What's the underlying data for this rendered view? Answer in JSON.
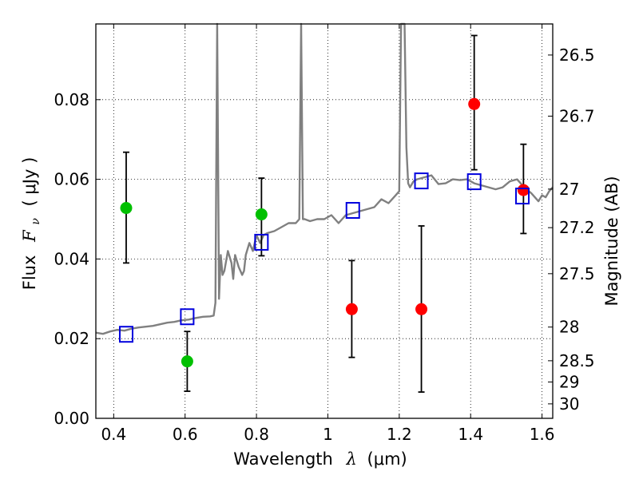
{
  "chart_data": {
    "type": "scatter",
    "xlabel_text": "Wavelength",
    "xlabel_symbol": "λ",
    "xlabel_unit": "(μm)",
    "ylabel_text": "Flux",
    "ylabel_symbol": "F",
    "ylabel_sub": "ν",
    "ylabel_unit": "( μJy )",
    "y2label": "Magnitude (AB)",
    "xlim": [
      0.35,
      1.63
    ],
    "ylim": [
      0.0,
      0.099
    ],
    "grid": true,
    "x_ticks": [
      0.4,
      0.6,
      0.8,
      1.0,
      1.2,
      1.4,
      1.6
    ],
    "x_tick_labels": [
      "0.4",
      "0.6",
      "0.8",
      "1",
      "1.2",
      "1.4",
      "1.6"
    ],
    "y_ticks": [
      0.0,
      0.02,
      0.04,
      0.06,
      0.08
    ],
    "y_tick_labels": [
      "0.00",
      "0.02",
      "0.04",
      "0.06",
      "0.08"
    ],
    "y2_ticks": [
      {
        "mag": 26.5,
        "label": "26.5"
      },
      {
        "mag": 26.7,
        "label": "26.7"
      },
      {
        "mag": 27.0,
        "label": "27"
      },
      {
        "mag": 27.2,
        "label": "27.2"
      },
      {
        "mag": 27.5,
        "label": "27.5"
      },
      {
        "mag": 28.0,
        "label": "28"
      },
      {
        "mag": 28.5,
        "label": "28.5"
      },
      {
        "mag": 29.0,
        "label": "29"
      },
      {
        "mag": 30.0,
        "label": "30"
      }
    ],
    "series": [
      {
        "name": "green points",
        "color": "#00c000",
        "marker": "circle",
        "points": [
          {
            "x": 0.435,
            "y": 0.0528,
            "ylo": 0.039,
            "yhi": 0.0668
          },
          {
            "x": 0.606,
            "y": 0.0143,
            "ylo": 0.0068,
            "yhi": 0.0218
          },
          {
            "x": 0.814,
            "y": 0.0512,
            "ylo": 0.0408,
            "yhi": 0.0603
          }
        ]
      },
      {
        "name": "red points",
        "color": "#ff0000",
        "marker": "circle",
        "points": [
          {
            "x": 1.067,
            "y": 0.0274,
            "ylo": 0.0153,
            "yhi": 0.0396
          },
          {
            "x": 1.262,
            "y": 0.0274,
            "ylo": 0.0066,
            "yhi": 0.0483
          },
          {
            "x": 1.41,
            "y": 0.0789,
            "ylo": 0.0624,
            "yhi": 0.0961
          },
          {
            "x": 1.548,
            "y": 0.0573,
            "ylo": 0.0464,
            "yhi": 0.0688
          }
        ]
      },
      {
        "name": "model photometry",
        "color": "#0000dd",
        "marker": "open-square",
        "points": [
          {
            "x": 0.435,
            "y": 0.0211
          },
          {
            "x": 0.606,
            "y": 0.0255
          },
          {
            "x": 0.814,
            "y": 0.0442
          },
          {
            "x": 1.07,
            "y": 0.0522
          },
          {
            "x": 1.262,
            "y": 0.0596
          },
          {
            "x": 1.41,
            "y": 0.0594
          },
          {
            "x": 1.545,
            "y": 0.0558
          }
        ]
      },
      {
        "name": "model spectrum",
        "color": "#808080",
        "marker": "line",
        "x": [
          0.35,
          0.37,
          0.39,
          0.41,
          0.43,
          0.45,
          0.47,
          0.49,
          0.51,
          0.53,
          0.55,
          0.57,
          0.59,
          0.61,
          0.63,
          0.65,
          0.67,
          0.68,
          0.685,
          0.69,
          0.695,
          0.7,
          0.705,
          0.71,
          0.72,
          0.73,
          0.735,
          0.74,
          0.75,
          0.76,
          0.765,
          0.77,
          0.78,
          0.79,
          0.8,
          0.81,
          0.82,
          0.83,
          0.85,
          0.87,
          0.89,
          0.91,
          0.92,
          0.925,
          0.93,
          0.935,
          0.95,
          0.97,
          0.99,
          1.01,
          1.03,
          1.05,
          1.07,
          1.09,
          1.11,
          1.13,
          1.15,
          1.17,
          1.19,
          1.2,
          1.205,
          1.21,
          1.215,
          1.22,
          1.225,
          1.23,
          1.24,
          1.25,
          1.27,
          1.29,
          1.31,
          1.33,
          1.35,
          1.37,
          1.39,
          1.41,
          1.43,
          1.45,
          1.47,
          1.49,
          1.51,
          1.53,
          1.55,
          1.57,
          1.59,
          1.6,
          1.61,
          1.62,
          1.63
        ],
        "y": [
          0.0215,
          0.0212,
          0.0218,
          0.0222,
          0.022,
          0.0225,
          0.0228,
          0.023,
          0.0232,
          0.0236,
          0.024,
          0.0242,
          0.0246,
          0.0248,
          0.0252,
          0.0255,
          0.0256,
          0.0258,
          0.029,
          0.099,
          0.03,
          0.041,
          0.036,
          0.037,
          0.042,
          0.039,
          0.035,
          0.041,
          0.038,
          0.036,
          0.037,
          0.041,
          0.044,
          0.042,
          0.046,
          0.044,
          0.046,
          0.0465,
          0.047,
          0.048,
          0.049,
          0.049,
          0.05,
          0.099,
          0.05,
          0.05,
          0.0495,
          0.05,
          0.05,
          0.051,
          0.049,
          0.051,
          0.0515,
          0.052,
          0.0525,
          0.053,
          0.055,
          0.054,
          0.056,
          0.057,
          0.099,
          0.099,
          0.099,
          0.068,
          0.059,
          0.058,
          0.0595,
          0.06,
          0.0605,
          0.061,
          0.0588,
          0.059,
          0.06,
          0.0598,
          0.06,
          0.059,
          0.0585,
          0.058,
          0.0575,
          0.058,
          0.0595,
          0.06,
          0.058,
          0.0565,
          0.0545,
          0.056,
          0.0555,
          0.057,
          0.058
        ]
      }
    ]
  }
}
